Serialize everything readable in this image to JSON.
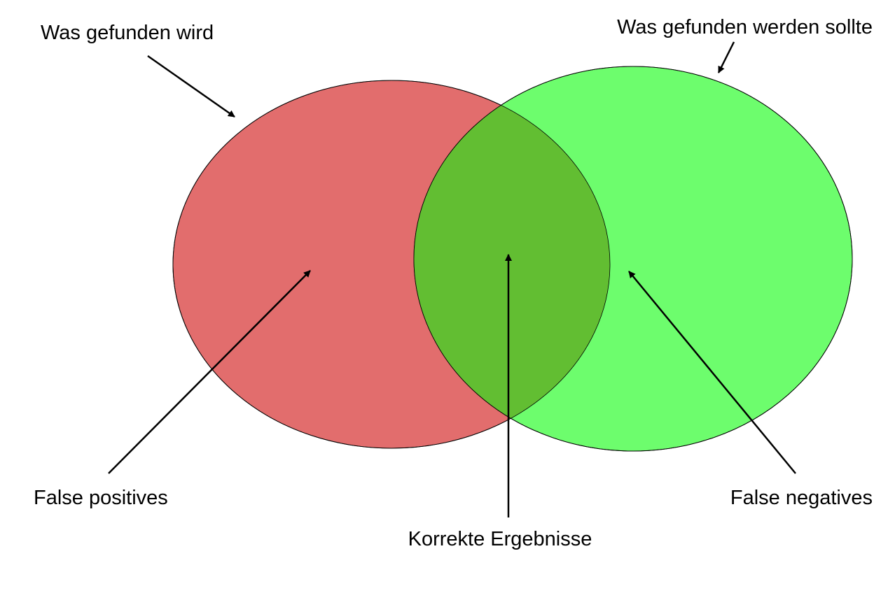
{
  "sets": {
    "found": {
      "label": "Was gefunden wird",
      "color": "#e26d6d"
    },
    "should_be_found": {
      "label": "Was gefunden werden sollte",
      "color": "#6dfd6d"
    },
    "overlap_color": "#62be32"
  },
  "regions": {
    "false_positives": "False positives",
    "correct_results": "Korrekte Ergebnisse",
    "false_negatives": "False negatives"
  }
}
